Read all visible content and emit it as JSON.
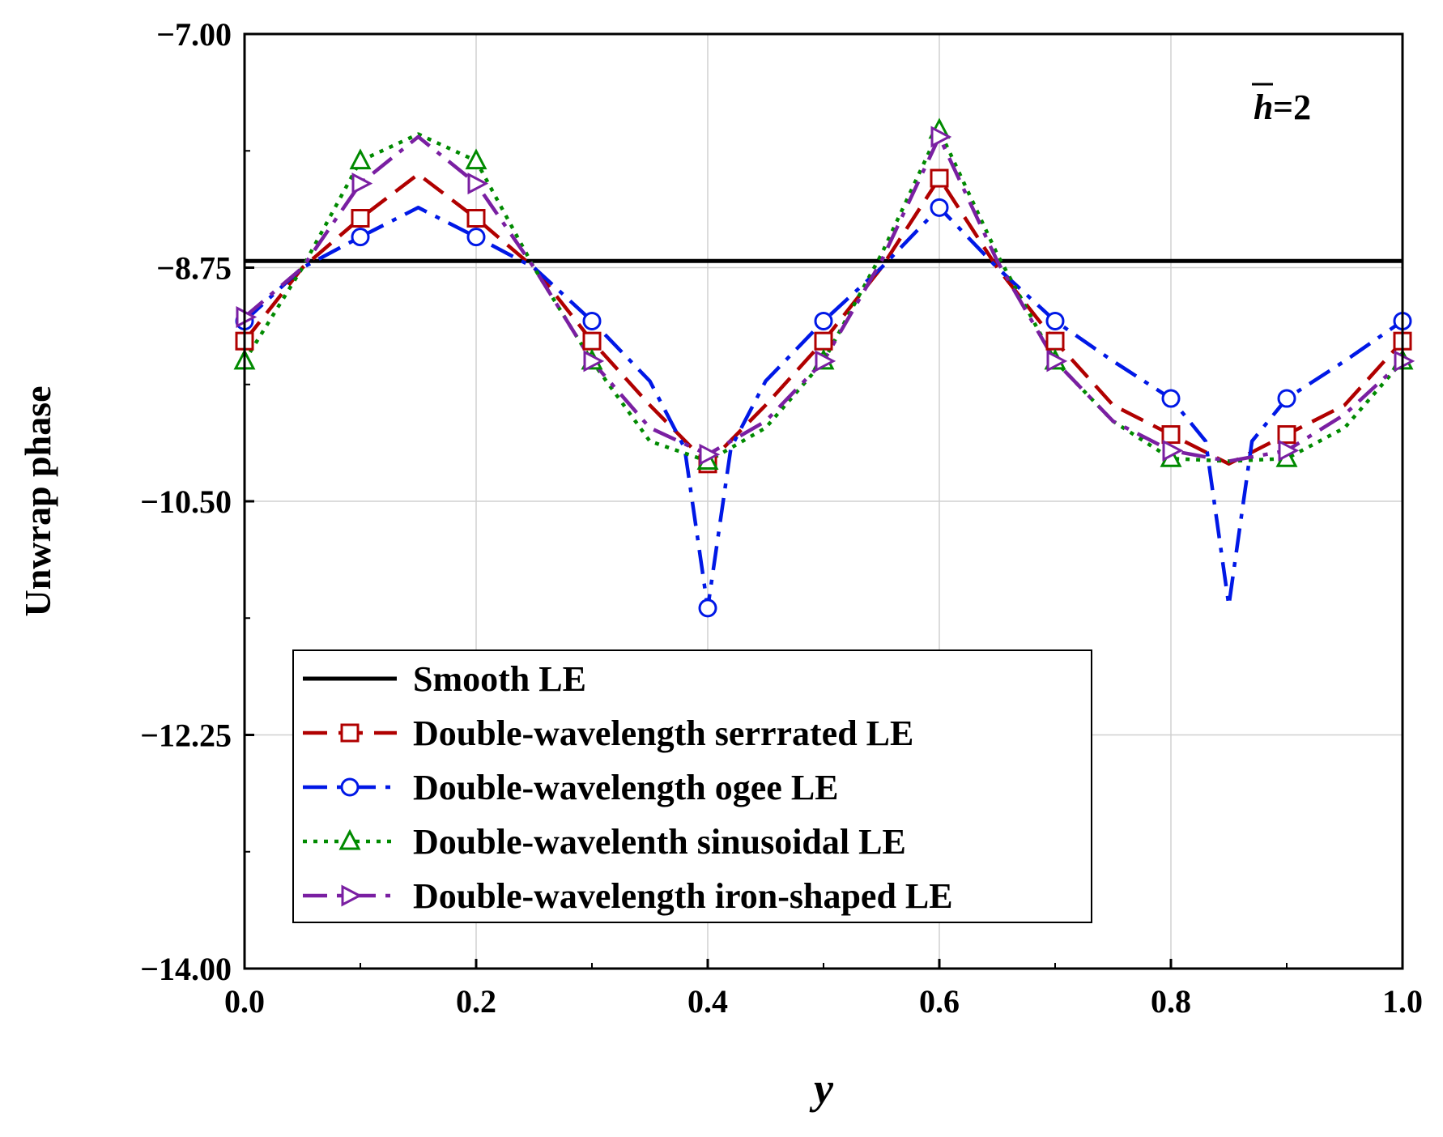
{
  "chart_data": {
    "type": "line",
    "title": "",
    "xlabel": "y",
    "ylabel": "Unwrap phase",
    "xlim": [
      0.0,
      1.0
    ],
    "ylim": [
      -14.0,
      -7.0
    ],
    "xticks": [
      0.0,
      0.2,
      0.4,
      0.6,
      0.8,
      1.0
    ],
    "xtick_labels": [
      "0.0",
      "0.2",
      "0.4",
      "0.6",
      "0.8",
      "1.0"
    ],
    "yticks": [
      -7.0,
      -8.75,
      -10.5,
      -12.25,
      -14.0
    ],
    "ytick_labels": [
      "−7.00",
      "−8.75",
      "−10.50",
      "−12.25",
      "−14.00"
    ],
    "grid": true,
    "annotation": {
      "symbol": "h",
      "text": "=2"
    },
    "legend_location": "lower-left",
    "series": [
      {
        "name": "Smooth LE",
        "color": "#000000",
        "dash": "solid",
        "marker": "none",
        "x": [
          0.0,
          1.0
        ],
        "y": [
          -8.7,
          -8.7
        ]
      },
      {
        "name": "Double-wavelength serrrated LE",
        "color": "#b00000",
        "dash": "dash",
        "marker": "square",
        "x": [
          0.0,
          0.05,
          0.1,
          0.15,
          0.2,
          0.25,
          0.3,
          0.35,
          0.4,
          0.45,
          0.5,
          0.55,
          0.6,
          0.65,
          0.7,
          0.75,
          0.8,
          0.85,
          0.9,
          0.95,
          1.0
        ],
        "y": [
          -9.3,
          -8.75,
          -8.38,
          -8.05,
          -8.38,
          -8.75,
          -9.3,
          -9.78,
          -10.22,
          -9.78,
          -9.3,
          -8.75,
          -8.08,
          -8.75,
          -9.3,
          -9.78,
          -10.0,
          -10.22,
          -10.0,
          -9.78,
          -9.3
        ],
        "markers_x": [
          0.0,
          0.1,
          0.2,
          0.3,
          0.4,
          0.5,
          0.6,
          0.7,
          0.8,
          0.9,
          1.0
        ],
        "markers_y": [
          -9.3,
          -8.38,
          -8.38,
          -9.3,
          -10.22,
          -9.3,
          -8.08,
          -9.3,
          -10.0,
          -10.0,
          -9.3
        ]
      },
      {
        "name": "Double-wavelength ogee LE",
        "color": "#0018e6",
        "dash": "dashdot",
        "marker": "circle",
        "x": [
          0.0,
          0.05,
          0.1,
          0.15,
          0.2,
          0.25,
          0.3,
          0.35,
          0.38,
          0.4,
          0.42,
          0.45,
          0.5,
          0.55,
          0.6,
          0.65,
          0.7,
          0.75,
          0.8,
          0.83,
          0.85,
          0.87,
          0.9,
          0.95,
          1.0
        ],
        "y": [
          -9.15,
          -8.75,
          -8.52,
          -8.3,
          -8.52,
          -8.75,
          -9.15,
          -9.6,
          -10.1,
          -11.3,
          -10.1,
          -9.6,
          -9.15,
          -8.75,
          -8.3,
          -8.75,
          -9.15,
          -9.45,
          -9.73,
          -10.05,
          -11.28,
          -10.05,
          -9.73,
          -9.45,
          -9.15
        ],
        "markers_x": [
          0.0,
          0.1,
          0.2,
          0.3,
          0.4,
          0.5,
          0.6,
          0.7,
          0.8,
          0.9,
          1.0
        ],
        "markers_y": [
          -9.15,
          -8.52,
          -8.52,
          -9.15,
          -11.3,
          -9.15,
          -8.3,
          -9.15,
          -9.73,
          -9.73,
          -9.15
        ]
      },
      {
        "name": "Double-wavelenth sinusoidal LE",
        "color": "#008a00",
        "dash": "dot",
        "marker": "triangle-up",
        "x": [
          0.0,
          0.05,
          0.1,
          0.15,
          0.2,
          0.25,
          0.3,
          0.35,
          0.4,
          0.45,
          0.5,
          0.55,
          0.6,
          0.65,
          0.7,
          0.75,
          0.8,
          0.85,
          0.9,
          0.95,
          1.0
        ],
        "y": [
          -9.45,
          -8.75,
          -7.95,
          -7.75,
          -7.95,
          -8.75,
          -9.45,
          -10.05,
          -10.2,
          -9.95,
          -9.45,
          -8.65,
          -7.72,
          -8.65,
          -9.45,
          -9.9,
          -10.18,
          -10.2,
          -10.18,
          -9.95,
          -9.45
        ],
        "markers_x": [
          0.0,
          0.1,
          0.2,
          0.3,
          0.4,
          0.5,
          0.6,
          0.7,
          0.8,
          0.9,
          1.0
        ],
        "markers_y": [
          -9.45,
          -7.95,
          -7.95,
          -9.45,
          -10.2,
          -9.45,
          -7.72,
          -9.45,
          -10.18,
          -10.18,
          -9.45
        ]
      },
      {
        "name": "Double-wavelength iron-shaped LE",
        "color": "#7a1fa2",
        "dash": "dashdot",
        "marker": "triangle-right",
        "x": [
          0.0,
          0.05,
          0.1,
          0.15,
          0.2,
          0.25,
          0.3,
          0.35,
          0.4,
          0.45,
          0.5,
          0.55,
          0.6,
          0.65,
          0.7,
          0.75,
          0.8,
          0.85,
          0.9,
          0.95,
          1.0
        ],
        "y": [
          -9.12,
          -8.75,
          -8.12,
          -7.77,
          -8.12,
          -8.75,
          -9.45,
          -9.95,
          -10.15,
          -9.9,
          -9.45,
          -8.7,
          -7.77,
          -8.7,
          -9.45,
          -9.9,
          -10.12,
          -10.2,
          -10.12,
          -9.85,
          -9.45
        ],
        "markers_x": [
          0.0,
          0.1,
          0.2,
          0.3,
          0.4,
          0.5,
          0.6,
          0.7,
          0.8,
          0.9,
          1.0
        ],
        "markers_y": [
          -9.12,
          -8.12,
          -8.12,
          -9.45,
          -10.15,
          -9.45,
          -7.77,
          -9.45,
          -10.12,
          -10.12,
          -9.45
        ]
      }
    ]
  }
}
